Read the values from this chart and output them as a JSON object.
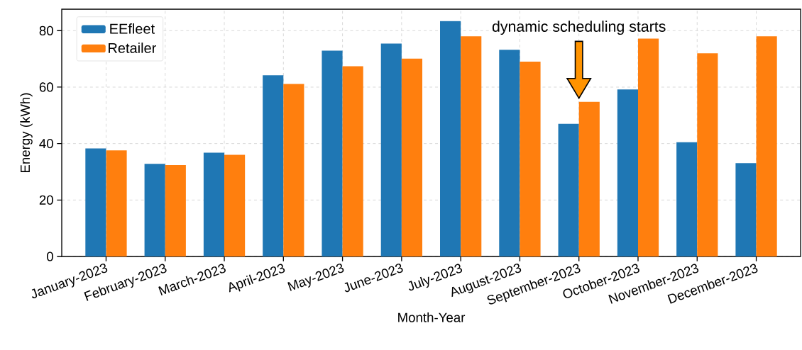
{
  "chart_data": {
    "type": "bar",
    "xlabel": "Month-Year",
    "ylabel": "Energy (kWh)",
    "categories": [
      "January-2023",
      "February-2023",
      "March-2023",
      "April-2023",
      "May-2023",
      "June-2023",
      "July-2023",
      "August-2023",
      "September-2023",
      "October-2023",
      "November-2023",
      "December-2023"
    ],
    "series": [
      {
        "name": "EEfleet",
        "color": "#1f77b4",
        "values": [
          38.3,
          32.8,
          36.8,
          64.2,
          72.9,
          75.4,
          83.4,
          73.2,
          47.0,
          59.2,
          40.5,
          33.1
        ]
      },
      {
        "name": "Retailer",
        "color": "#ff7f0e",
        "values": [
          37.6,
          32.4,
          36.0,
          61.1,
          67.4,
          70.1,
          78.0,
          69.0,
          54.8,
          77.2,
          72.0,
          78.0
        ]
      }
    ],
    "ylim": [
      0,
      87.6
    ],
    "yticks": [
      0,
      20,
      40,
      60,
      80
    ],
    "grid": true,
    "legend": "top left",
    "annotations": [
      "dynamic scheduling starts"
    ]
  }
}
